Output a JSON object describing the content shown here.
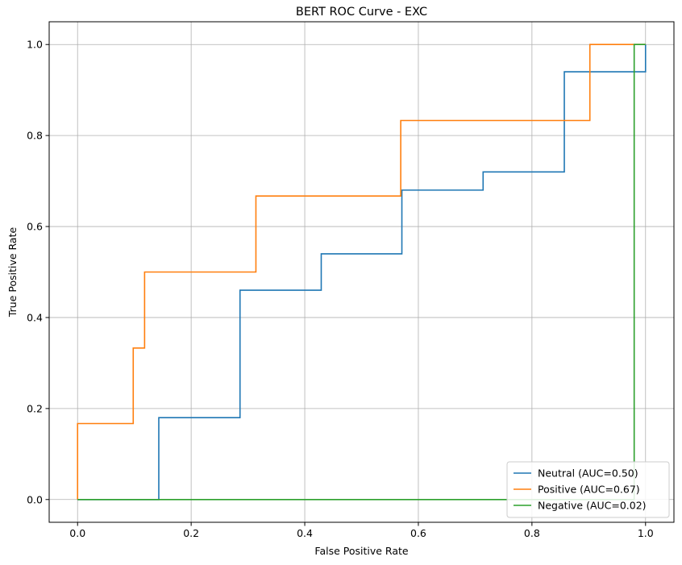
{
  "chart_data": {
    "type": "line",
    "title": "BERT ROC Curve - EXC",
    "xlabel": "False Positive Rate",
    "ylabel": "True Positive Rate",
    "xlim": [
      -0.05,
      1.05
    ],
    "ylim": [
      -0.05,
      1.05
    ],
    "xticks": [
      0.0,
      0.2,
      0.4,
      0.6,
      0.8,
      1.0
    ],
    "yticks": [
      0.0,
      0.2,
      0.4,
      0.6,
      0.8,
      1.0
    ],
    "xtick_labels": [
      "0.0",
      "0.2",
      "0.4",
      "0.6",
      "0.8",
      "1.0"
    ],
    "ytick_labels": [
      "0.0",
      "0.2",
      "0.4",
      "0.6",
      "0.8",
      "1.0"
    ],
    "grid": true,
    "legend_position": "lower-right",
    "series": [
      {
        "name": "Neutral (AUC=0.50)",
        "color": "#1f77b4",
        "x": [
          0.0,
          0.143,
          0.143,
          0.286,
          0.286,
          0.429,
          0.429,
          0.571,
          0.571,
          0.714,
          0.714,
          0.857,
          0.857,
          1.0,
          1.0
        ],
        "y": [
          0.0,
          0.0,
          0.18,
          0.18,
          0.46,
          0.46,
          0.54,
          0.54,
          0.68,
          0.68,
          0.72,
          0.72,
          0.94,
          0.94,
          1.0
        ]
      },
      {
        "name": "Positive (AUC=0.67)",
        "color": "#ff7f0e",
        "x": [
          0.0,
          0.0,
          0.098,
          0.098,
          0.118,
          0.118,
          0.314,
          0.314,
          0.569,
          0.569,
          0.902,
          0.902,
          1.0
        ],
        "y": [
          0.0,
          0.167,
          0.167,
          0.333,
          0.333,
          0.5,
          0.5,
          0.667,
          0.667,
          0.833,
          0.833,
          1.0,
          1.0
        ]
      },
      {
        "name": "Negative (AUC=0.02)",
        "color": "#2ca02c",
        "x": [
          0.0,
          0.98,
          0.98,
          1.0
        ],
        "y": [
          0.0,
          0.0,
          1.0,
          1.0
        ]
      }
    ]
  }
}
